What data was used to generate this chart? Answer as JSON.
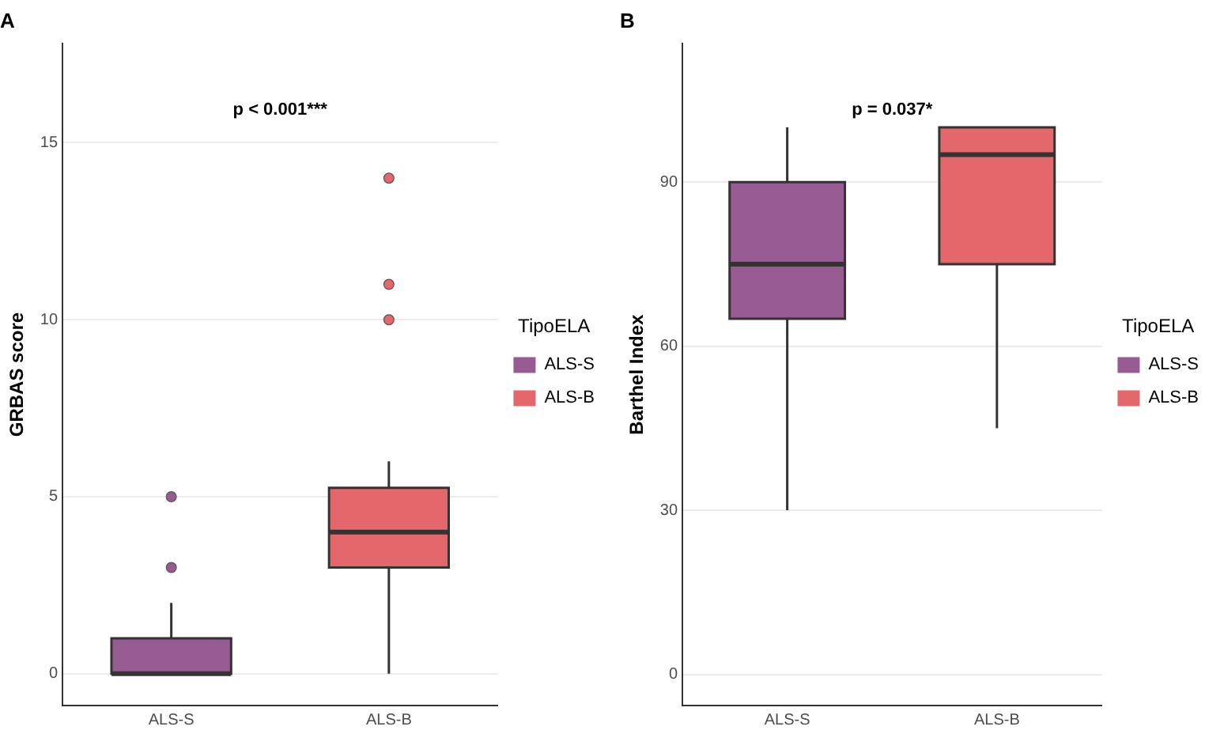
{
  "chart_data": [
    {
      "type": "box",
      "title": "A",
      "ylabel": "GRBAS score",
      "legend_title": "TipoELA",
      "categories": [
        "ALS-S",
        "ALS-B"
      ],
      "series": [
        {
          "name": "ALS-S",
          "color": "#985b91",
          "boxes": [
            {
              "low": 0,
              "q1": 0,
              "median": 0,
              "q3": 1,
              "high": 2,
              "outliers": [
                3,
                5
              ]
            },
            null
          ]
        },
        {
          "name": "ALS-B",
          "color": "#e3676b",
          "boxes": [
            null,
            {
              "low": 0,
              "q1": 3,
              "median": 4,
              "q3": 5.25,
              "high": 6,
              "outliers": [
                10,
                11,
                14
              ]
            }
          ]
        }
      ],
      "ylim": [
        -0.9,
        17.8
      ],
      "yticks": [
        0,
        5,
        10,
        15
      ],
      "grid": "y",
      "legend": "right",
      "annotations": [
        "p < 0.001***"
      ]
    },
    {
      "type": "box",
      "title": "B",
      "ylabel": "Barthel Index",
      "legend_title": "TipoELA",
      "categories": [
        "ALS-S",
        "ALS-B"
      ],
      "series": [
        {
          "name": "ALS-S",
          "color": "#985b91",
          "boxes": [
            {
              "low": 30,
              "q1": 65,
              "median": 75,
              "q3": 90,
              "high": 100
            },
            null
          ]
        },
        {
          "name": "ALS-B",
          "color": "#e3676b",
          "boxes": [
            null,
            {
              "low": 45,
              "q1": 75,
              "median": 95,
              "q3": 100,
              "high": 100
            }
          ]
        }
      ],
      "ylim": [
        -5.7,
        115.3
      ],
      "yticks": [
        0,
        30,
        60,
        90
      ],
      "grid": "y",
      "legend": "right",
      "annotations": [
        "p = 0.037*"
      ]
    }
  ]
}
